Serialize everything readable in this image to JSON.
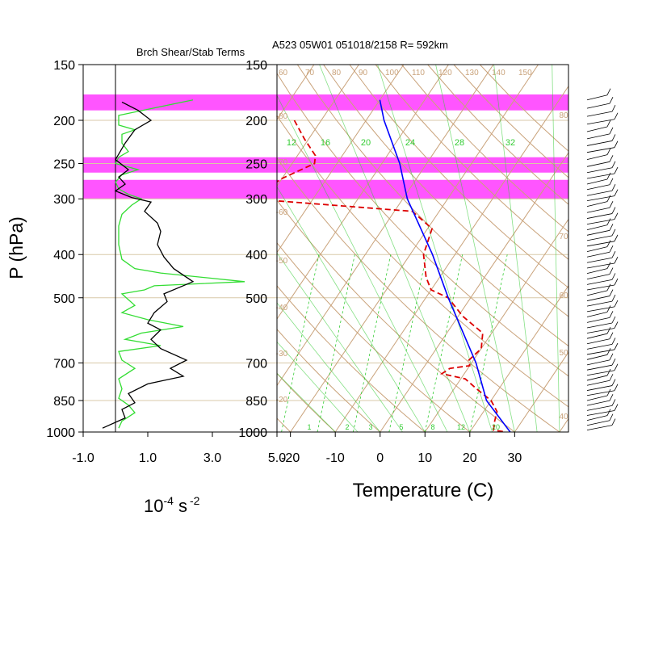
{
  "header": {
    "left_title": "Brch Shear/Stab Terms",
    "right_title": "A523 05W01 051018/2158 R= 592km"
  },
  "colors": {
    "background": "#ffffff",
    "frame": "#000000",
    "skewt_lines": "#c9a27a",
    "isobar_lines": "#d8c9a8",
    "mixing_ratio": "#33cc33",
    "temperature": "#0000ff",
    "dewpoint": "#dd0000",
    "shear_term": "#33dd33",
    "stability_term": "#000000",
    "highlight_band": "#ff55ff",
    "wind_barbs": "#000000"
  },
  "chart_data": [
    {
      "type": "line",
      "name": "bulk-richardson-terms",
      "title": "Brch Shear/Stab Terms",
      "xlabel": "10",
      "xlabel_exp": "-4",
      "xlabel_unit": "s",
      "xlabel_unit_exp": "-2",
      "ylabel": "P (hPa)",
      "xlim": [
        -1.0,
        5.0
      ],
      "ylim": [
        1000,
        150
      ],
      "y_scale": "log",
      "x_ticks": [
        -1.0,
        1.0,
        3.0,
        5.0
      ],
      "x_tick_labels": [
        "-1.0",
        "1.0",
        "3.0",
        "5.0"
      ],
      "y_ticks": [
        150,
        200,
        250,
        300,
        400,
        500,
        700,
        850,
        1000
      ],
      "y_tick_labels": [
        "150",
        "200",
        "250",
        "300",
        "400",
        "500",
        "700",
        "850",
        "1000"
      ],
      "zero_line": 0.0,
      "highlight_bands": [
        [
          175,
          190
        ],
        [
          242,
          262
        ],
        [
          272,
          300
        ]
      ],
      "series": [
        {
          "color": "#33dd33",
          "points": [
            [
              2.4,
              180
            ],
            [
              1.3,
              187
            ],
            [
              0.1,
              195
            ],
            [
              0.1,
              205
            ],
            [
              0.6,
              210
            ],
            [
              0.2,
              215
            ],
            [
              0.2,
              225
            ],
            [
              0.4,
              235
            ],
            [
              0.1,
              242
            ],
            [
              0.0,
              250
            ],
            [
              0.7,
              258
            ],
            [
              0.2,
              265
            ],
            [
              0.0,
              275
            ],
            [
              0.1,
              285
            ],
            [
              0.4,
              293
            ],
            [
              0.8,
              300
            ],
            [
              0.5,
              310
            ],
            [
              0.2,
              325
            ],
            [
              0.1,
              345
            ],
            [
              0.1,
              380
            ],
            [
              0.2,
              410
            ],
            [
              0.6,
              430
            ],
            [
              1.4,
              440
            ],
            [
              4.0,
              460
            ],
            [
              1.2,
              470
            ],
            [
              0.9,
              480
            ],
            [
              0.2,
              490
            ],
            [
              0.4,
              505
            ],
            [
              0.6,
              520
            ],
            [
              0.2,
              540
            ],
            [
              1.0,
              560
            ],
            [
              2.1,
              580
            ],
            [
              0.8,
              600
            ],
            [
              0.3,
              620
            ],
            [
              1.4,
              640
            ],
            [
              0.1,
              660
            ],
            [
              0.2,
              690
            ],
            [
              0.6,
              720
            ],
            [
              0.1,
              760
            ],
            [
              0.2,
              800
            ],
            [
              0.1,
              840
            ],
            [
              0.4,
              870
            ],
            [
              0.6,
              905
            ],
            [
              0.2,
              945
            ],
            [
              0.1,
              980
            ]
          ]
        },
        {
          "color": "#000000",
          "points": [
            [
              0.2,
              182
            ],
            [
              0.7,
              190
            ],
            [
              1.1,
              200
            ],
            [
              0.6,
              210
            ],
            [
              0.3,
              225
            ],
            [
              0.0,
              245
            ],
            [
              0.4,
              258
            ],
            [
              0.1,
              268
            ],
            [
              0.3,
              278
            ],
            [
              0.0,
              288
            ],
            [
              0.5,
              298
            ],
            [
              1.1,
              305
            ],
            [
              0.9,
              320
            ],
            [
              1.3,
              340
            ],
            [
              1.4,
              355
            ],
            [
              1.3,
              380
            ],
            [
              1.5,
              405
            ],
            [
              1.8,
              430
            ],
            [
              2.4,
              460
            ],
            [
              1.5,
              490
            ],
            [
              1.6,
              510
            ],
            [
              1.2,
              540
            ],
            [
              1.0,
              570
            ],
            [
              1.4,
              590
            ],
            [
              1.1,
              620
            ],
            [
              1.4,
              650
            ],
            [
              2.2,
              690
            ],
            [
              1.7,
              720
            ],
            [
              2.1,
              750
            ],
            [
              1.0,
              780
            ],
            [
              0.4,
              820
            ],
            [
              0.6,
              860
            ],
            [
              0.2,
              890
            ],
            [
              0.3,
              930
            ],
            [
              -0.4,
              980
            ]
          ]
        }
      ]
    },
    {
      "type": "line",
      "name": "skew-t-log-p",
      "xlabel": "Temperature (C)",
      "xlim": [
        -23,
        42
      ],
      "ylim": [
        1000,
        150
      ],
      "y_scale": "log",
      "x_ticks": [
        -20,
        -10,
        0,
        10,
        20,
        30
      ],
      "x_tick_labels": [
        "-20",
        "-10",
        "0",
        "10",
        "20",
        "30"
      ],
      "y_ticks": [
        150,
        200,
        250,
        300,
        400,
        500,
        700,
        850,
        1000
      ],
      "y_tick_labels": [
        "150",
        "200",
        "250",
        "300",
        "400",
        "500",
        "700",
        "850",
        "1000"
      ],
      "highlight_bands": [
        [
          175,
          190
        ],
        [
          242,
          262
        ],
        [
          272,
          300
        ]
      ],
      "isotherm_labels": [
        "-80",
        "-70",
        "-60",
        "-50",
        "-40",
        "-30",
        "-20",
        "-10",
        "0",
        "10"
      ],
      "dry_adiabat_labels": [
        "80",
        "70",
        "60",
        "50",
        "40"
      ],
      "theta_labels": [
        "60",
        "70",
        "80",
        "90",
        "100",
        "110",
        "120",
        "130",
        "140",
        "150"
      ],
      "mixing_ratio_labels_top": [
        "12",
        "16",
        "20",
        "24",
        "28",
        "32"
      ],
      "mixing_ratio_labels_bottom": [
        "1",
        "2",
        "3",
        "5",
        "8",
        "12",
        "20"
      ],
      "temperature": [
        [
          -50,
          180
        ],
        [
          -46,
          200
        ],
        [
          -36,
          250
        ],
        [
          -29,
          300
        ],
        [
          -15,
          400
        ],
        [
          -5,
          500
        ],
        [
          11,
          700
        ],
        [
          19,
          850
        ],
        [
          29,
          1000
        ]
      ],
      "dewpoint": [
        [
          -66,
          200
        ],
        [
          -61,
          220
        ],
        [
          -56,
          240
        ],
        [
          -55,
          250
        ],
        [
          -60,
          270
        ],
        [
          -64,
          300
        ],
        [
          -26,
          320
        ],
        [
          -19,
          350
        ],
        [
          -17,
          400
        ],
        [
          -13,
          450
        ],
        [
          -10,
          480
        ],
        [
          -5,
          500
        ],
        [
          1,
          550
        ],
        [
          8,
          600
        ],
        [
          10,
          650
        ],
        [
          9,
          690
        ],
        [
          10,
          710
        ],
        [
          6,
          720
        ],
        [
          5,
          740
        ],
        [
          11,
          760
        ],
        [
          15,
          800
        ],
        [
          20,
          850
        ],
        [
          23,
          900
        ],
        [
          24,
          950
        ],
        [
          25,
          990
        ],
        [
          28,
          1000
        ]
      ],
      "wind_barb_pressures": [
        180,
        188,
        196,
        204,
        212,
        220,
        228,
        236,
        245,
        254,
        262,
        270,
        278,
        286,
        295,
        303,
        312,
        322,
        332,
        342,
        352,
        362,
        372,
        383,
        394,
        405,
        417,
        429,
        441,
        454,
        467,
        480,
        494,
        508,
        522,
        537,
        552,
        568,
        584,
        600,
        617,
        634,
        652,
        670,
        688,
        707,
        726,
        746,
        766,
        786,
        807,
        828,
        850,
        872,
        895,
        918,
        942,
        966,
        990
      ]
    }
  ]
}
